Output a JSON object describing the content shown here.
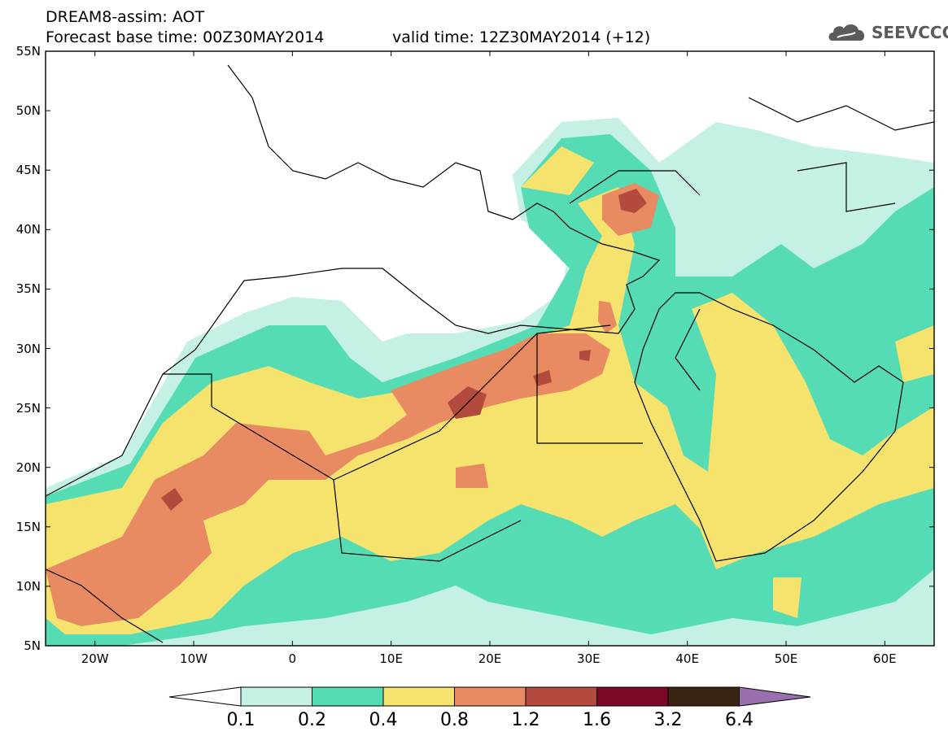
{
  "header": {
    "line1": "DREAM8-assim: AOT",
    "line2": "Forecast base time: 00Z30MAY2014",
    "valid": "valid time: 12Z30MAY2014 (+12)",
    "logo_text": "SEEVCCC",
    "logo_icon": "cloud-icon"
  },
  "map": {
    "lon_range": [
      -25,
      65
    ],
    "lat_range": [
      5,
      55
    ],
    "y_ticks": [
      {
        "lat": 55,
        "label": "55N"
      },
      {
        "lat": 50,
        "label": "50N"
      },
      {
        "lat": 45,
        "label": "45N"
      },
      {
        "lat": 40,
        "label": "40N"
      },
      {
        "lat": 35,
        "label": "35N"
      },
      {
        "lat": 30,
        "label": "30N"
      },
      {
        "lat": 25,
        "label": "25N"
      },
      {
        "lat": 20,
        "label": "20N"
      },
      {
        "lat": 15,
        "label": "15N"
      },
      {
        "lat": 10,
        "label": "10N"
      },
      {
        "lat": 5,
        "label": "5N"
      }
    ],
    "x_ticks": [
      {
        "lon": -20,
        "label": "20W"
      },
      {
        "lon": -10,
        "label": "10W"
      },
      {
        "lon": 0,
        "label": "0"
      },
      {
        "lon": 10,
        "label": "10E"
      },
      {
        "lon": 20,
        "label": "20E"
      },
      {
        "lon": 30,
        "label": "30E"
      },
      {
        "lon": 40,
        "label": "40E"
      },
      {
        "lon": 50,
        "label": "50E"
      },
      {
        "lon": 60,
        "label": "60E"
      }
    ]
  },
  "colorbar": {
    "labels": [
      "0.1",
      "0.2",
      "0.4",
      "0.8",
      "1.2",
      "1.6",
      "3.2",
      "6.4"
    ],
    "colors": {
      "below": "#ffffff",
      "c1": "#c4f0e6",
      "c2": "#55dcb4",
      "c3": "#f5e36e",
      "c4": "#e88a62",
      "c5": "#b24a3e",
      "c6": "#7a0a28",
      "c7": "#3c2412",
      "above": "#9a6fb0"
    }
  }
}
